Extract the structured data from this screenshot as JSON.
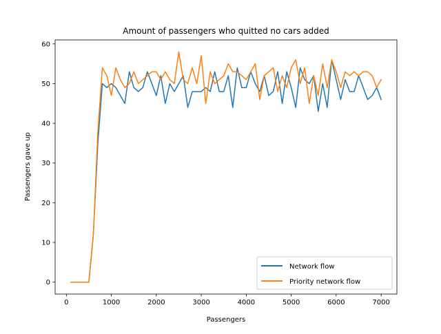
{
  "chart_data": {
    "type": "line",
    "title": "Amount of passengers who quitted no cars added",
    "xlabel": "Passengers",
    "ylabel": "Passengers gave up",
    "xlim": [
      -250,
      7350
    ],
    "ylim": [
      -3,
      61
    ],
    "xticks": [
      0,
      1000,
      2000,
      3000,
      4000,
      5000,
      6000,
      7000
    ],
    "yticks": [
      0,
      10,
      20,
      30,
      40,
      50,
      60
    ],
    "grid": false,
    "legend_position": "lower-right",
    "x": [
      100,
      200,
      300,
      400,
      500,
      600,
      700,
      800,
      900,
      1000,
      1100,
      1200,
      1300,
      1400,
      1500,
      1600,
      1700,
      1800,
      1900,
      2000,
      2100,
      2200,
      2300,
      2400,
      2500,
      2600,
      2700,
      2800,
      2900,
      3000,
      3100,
      3200,
      3300,
      3400,
      3500,
      3600,
      3700,
      3800,
      3900,
      4000,
      4100,
      4200,
      4300,
      4400,
      4500,
      4600,
      4700,
      4800,
      4900,
      5000,
      5100,
      5200,
      5300,
      5400,
      5500,
      5600,
      5700,
      5800,
      5900,
      6000,
      6100,
      6200,
      6300,
      6400,
      6500,
      6600,
      6700,
      6800,
      6900,
      7000
    ],
    "series": [
      {
        "name": "Network flow",
        "color": "#1f77b4",
        "values": [
          0,
          0,
          0,
          0,
          0,
          12,
          35,
          50,
          49,
          50,
          49,
          47,
          45,
          53,
          49,
          48,
          49,
          53,
          50,
          47,
          52,
          45,
          50,
          48,
          50,
          52,
          44,
          48,
          48,
          48,
          49,
          48,
          53,
          48,
          48,
          52,
          44,
          54,
          49,
          49,
          53,
          50,
          48,
          52,
          47,
          48,
          53,
          45,
          53,
          49,
          44,
          54,
          51,
          50,
          52,
          43,
          50,
          44,
          56,
          51,
          46,
          51,
          48,
          48,
          52,
          49,
          46,
          47,
          49,
          46
        ]
      },
      {
        "name": "Priority network flow",
        "color": "#ff7f0e",
        "values": [
          0,
          0,
          0,
          0,
          0,
          12,
          38,
          54,
          52,
          47,
          54,
          51,
          49,
          50,
          53,
          50,
          51,
          52,
          53,
          53,
          51,
          53,
          51,
          50,
          58,
          51,
          50,
          54,
          50,
          57,
          45,
          53,
          50,
          51,
          52,
          55,
          53,
          53,
          52,
          51,
          53,
          55,
          46,
          52,
          53,
          54,
          48,
          52,
          49,
          54,
          56,
          50,
          54,
          45,
          52,
          47,
          55,
          49,
          56,
          53,
          49,
          53,
          52,
          53,
          52,
          53,
          53,
          52,
          49,
          51
        ]
      }
    ]
  }
}
